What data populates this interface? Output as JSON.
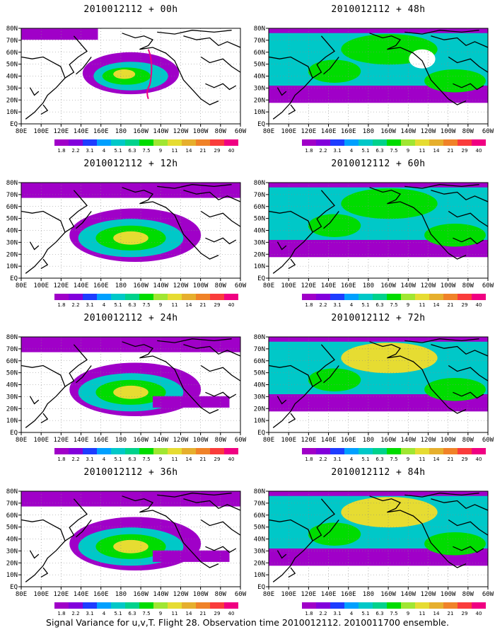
{
  "panels": [
    {
      "title": "2010012112 + 00h",
      "level": 0
    },
    {
      "title": "2010012112 + 48h",
      "level": 4
    },
    {
      "title": "2010012112 + 12h",
      "level": 1
    },
    {
      "title": "2010012112 + 60h",
      "level": 5
    },
    {
      "title": "2010012112 + 24h",
      "level": 2
    },
    {
      "title": "2010012112 + 72h",
      "level": 6
    },
    {
      "title": "2010012112 + 36h",
      "level": 3
    },
    {
      "title": "2010012112 + 84h",
      "level": 7
    }
  ],
  "lat_labels": [
    "80N",
    "70N",
    "60N",
    "50N",
    "40N",
    "30N",
    "20N",
    "10N",
    "EQ"
  ],
  "lon_labels": [
    "80E",
    "100E",
    "120E",
    "140E",
    "160E",
    "180",
    "160W",
    "140W",
    "120W",
    "100W",
    "80W",
    "60W"
  ],
  "colorbar": {
    "labels": [
      "1.8",
      "2.2",
      "3.1",
      "4",
      "5.1",
      "6.3",
      "7.5",
      "9",
      "11",
      "14",
      "21",
      "29",
      "40"
    ],
    "colors": [
      "#a000c8",
      "#8200dc",
      "#1e3cff",
      "#00a0ff",
      "#00c8c8",
      "#00d28c",
      "#00dc00",
      "#a0e632",
      "#e6dc32",
      "#e6af2d",
      "#f08228",
      "#fa3c3c",
      "#f00082"
    ]
  },
  "footer": "Signal Variance for u,v,T. Flight 28. Observation time 2010012112. 2010011700 ensemble."
}
